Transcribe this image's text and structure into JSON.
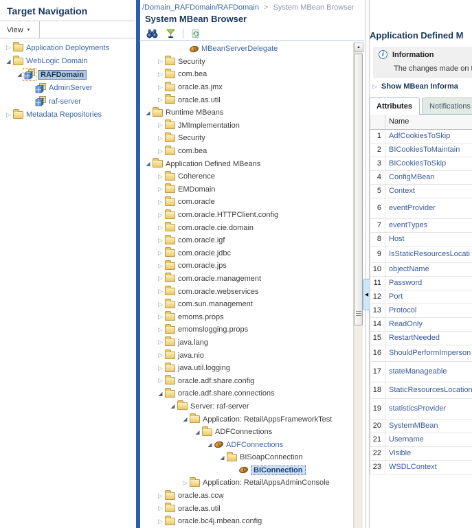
{
  "left_panel": {
    "title": "Target Navigation",
    "view_menu_label": "View",
    "tree": [
      {
        "label": "Application Deployments",
        "icon": "folder",
        "state": "collapsed",
        "level": 0,
        "link": true
      },
      {
        "label": "WebLogic Domain",
        "icon": "folder",
        "state": "expanded",
        "level": 0,
        "link": true
      },
      {
        "label": "RAFDomain",
        "icon": "domain",
        "state": "expanded",
        "level": 1,
        "link": true,
        "selected": "node",
        "icon_selected": true
      },
      {
        "label": "AdminServer",
        "icon": "server",
        "state": "leaf",
        "level": 2,
        "link": true
      },
      {
        "label": "raf-server",
        "icon": "server",
        "state": "leaf",
        "level": 2,
        "link": true
      },
      {
        "label": "Metadata Repositories",
        "icon": "folder",
        "state": "collapsed",
        "level": 0,
        "link": true
      }
    ]
  },
  "breadcrumb": {
    "link": "/Domain_RAFDomain/RAFDomain",
    "separator": ">",
    "current": "System MBean Browser"
  },
  "mbean_browser": {
    "title": "System MBean Browser",
    "toolbar": [
      {
        "name": "find",
        "icon": "binoculars-icon"
      },
      {
        "name": "filter",
        "icon": "filter-icon"
      },
      {
        "name": "refresh",
        "icon": "refresh-icon"
      }
    ],
    "tree": [
      {
        "label": "MBeanServerDelegate",
        "icon": "bean",
        "state": "leaf",
        "level": 3,
        "link": true
      },
      {
        "label": "Security",
        "icon": "folder",
        "state": "collapsed",
        "level": 1
      },
      {
        "label": "com.bea",
        "icon": "folder",
        "state": "collapsed",
        "level": 1
      },
      {
        "label": "oracle.as.jmx",
        "icon": "folder",
        "state": "collapsed",
        "level": 1
      },
      {
        "label": "oracle.as.util",
        "icon": "folder",
        "state": "collapsed",
        "level": 1
      },
      {
        "label": "Runtime MBeans",
        "icon": "folder",
        "state": "expanded",
        "level": 0
      },
      {
        "label": "JMImplementation",
        "icon": "folder",
        "state": "collapsed",
        "level": 1
      },
      {
        "label": "Security",
        "icon": "folder",
        "state": "collapsed",
        "level": 1
      },
      {
        "label": "com.bea",
        "icon": "folder",
        "state": "collapsed",
        "level": 1
      },
      {
        "label": "Application Defined MBeans",
        "icon": "folder",
        "state": "expanded",
        "level": 0
      },
      {
        "label": "Coherence",
        "icon": "folder",
        "state": "collapsed",
        "level": 1
      },
      {
        "label": "EMDomain",
        "icon": "folder",
        "state": "collapsed",
        "level": 1
      },
      {
        "label": "com.oracle",
        "icon": "folder",
        "state": "collapsed",
        "level": 1
      },
      {
        "label": "com.oracle.HTTPClient.config",
        "icon": "folder",
        "state": "collapsed",
        "level": 1
      },
      {
        "label": "com.oracle.cie.domain",
        "icon": "folder",
        "state": "collapsed",
        "level": 1
      },
      {
        "label": "com.oracle.igf",
        "icon": "folder",
        "state": "collapsed",
        "level": 1
      },
      {
        "label": "com.oracle.jdbc",
        "icon": "folder",
        "state": "collapsed",
        "level": 1
      },
      {
        "label": "com.oracle.jps",
        "icon": "folder",
        "state": "collapsed",
        "level": 1
      },
      {
        "label": "com.oracle.management",
        "icon": "folder",
        "state": "collapsed",
        "level": 1
      },
      {
        "label": "com.oracle.webservices",
        "icon": "folder",
        "state": "collapsed",
        "level": 1
      },
      {
        "label": "com.sun.management",
        "icon": "folder",
        "state": "collapsed",
        "level": 1
      },
      {
        "label": "emoms.props",
        "icon": "folder",
        "state": "collapsed",
        "level": 1
      },
      {
        "label": "emomslogging.props",
        "icon": "folder",
        "state": "collapsed",
        "level": 1
      },
      {
        "label": "java.lang",
        "icon": "folder",
        "state": "collapsed",
        "level": 1
      },
      {
        "label": "java.nio",
        "icon": "folder",
        "state": "collapsed",
        "level": 1
      },
      {
        "label": "java.util.logging",
        "icon": "folder",
        "state": "collapsed",
        "level": 1
      },
      {
        "label": "oracle.adf.share.config",
        "icon": "folder",
        "state": "collapsed",
        "level": 1
      },
      {
        "label": "oracle.adf.share.connections",
        "icon": "folder",
        "state": "expanded",
        "level": 1
      },
      {
        "label": "Server: raf-server",
        "icon": "folder",
        "state": "expanded",
        "level": 2
      },
      {
        "label": "Application: RetailAppsFrameworkTest",
        "icon": "folder",
        "state": "expanded",
        "level": 3
      },
      {
        "label": "ADFConnections",
        "icon": "folder",
        "state": "expanded",
        "level": 4
      },
      {
        "label": "ADFConnections",
        "icon": "bean",
        "state": "expanded",
        "level": 5,
        "link": true
      },
      {
        "label": "BISoapConnection",
        "icon": "folder",
        "state": "expanded",
        "level": 6
      },
      {
        "label": "BIConnection",
        "icon": "bean",
        "state": "leaf",
        "level": 7,
        "link": true,
        "selected": "focus"
      },
      {
        "label": "Application: RetailAppsAdminConsole",
        "icon": "folder",
        "state": "collapsed",
        "level": 3
      },
      {
        "label": "oracle.as.ccw",
        "icon": "folder",
        "state": "collapsed",
        "level": 1
      },
      {
        "label": "oracle.as.util",
        "icon": "folder",
        "state": "collapsed",
        "level": 1
      },
      {
        "label": "oracle.bc4j.mbean.config",
        "icon": "folder",
        "state": "collapsed",
        "level": 1
      }
    ]
  },
  "right_panel": {
    "title": "Application Defined M",
    "info": {
      "heading": "Information",
      "message": "The changes made on th"
    },
    "show_link": "Show MBean Informa",
    "tabs": [
      {
        "label": "Attributes",
        "active": true
      },
      {
        "label": "Notifications",
        "active": false
      }
    ],
    "table": {
      "number_header": "",
      "name_header": "Name",
      "rows": [
        {
          "num": 1,
          "name": "AdfCookiesToSkip"
        },
        {
          "num": 2,
          "name": "BICookiesToMaintain"
        },
        {
          "num": 3,
          "name": "BICookiesToSkip"
        },
        {
          "num": 4,
          "name": "ConfigMBean"
        },
        {
          "num": 5,
          "name": "Context"
        },
        {
          "num": 6,
          "name": "eventProvider"
        },
        {
          "num": 7,
          "name": "eventTypes"
        },
        {
          "num": 8,
          "name": "Host"
        },
        {
          "num": 9,
          "name": "IsStaticResourcesLocati"
        },
        {
          "num": 10,
          "name": "objectName"
        },
        {
          "num": 11,
          "name": "Password"
        },
        {
          "num": 12,
          "name": "Port"
        },
        {
          "num": 13,
          "name": "Protocol"
        },
        {
          "num": 14,
          "name": "ReadOnly"
        },
        {
          "num": 15,
          "name": "RestartNeeded"
        },
        {
          "num": 16,
          "name": "ShouldPerformImperson"
        },
        {
          "num": 17,
          "name": "stateManageable"
        },
        {
          "num": 18,
          "name": "StaticResourcesLocation"
        },
        {
          "num": 19,
          "name": "statisticsProvider"
        },
        {
          "num": 20,
          "name": "SystemMBean"
        },
        {
          "num": 21,
          "name": "Username"
        },
        {
          "num": 22,
          "name": "Visible"
        },
        {
          "num": 23,
          "name": "WSDLContext"
        }
      ]
    }
  },
  "colors": {
    "header_navy": "#17365d",
    "link_blue": "#3a67a9",
    "table_link_blue": "#3a5a9a",
    "divider_blue": "#2b5fad",
    "selected_node_bg": "#b3c7db",
    "focus_node_bg": "#cfe0f4",
    "folder_yellow": "#ecc964",
    "info_box_bg": "#f0f0f0",
    "inactive_tab_bg": "#e2eae6"
  }
}
